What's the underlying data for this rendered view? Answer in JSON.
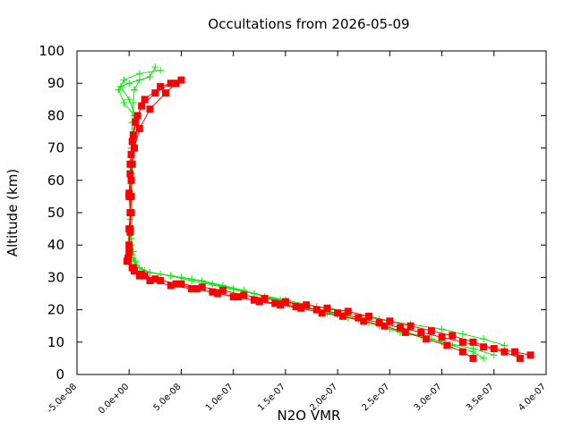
{
  "chart_data": {
    "type": "line",
    "title": "Occultations from 2026-05-09",
    "xlabel": "N2O VMR",
    "ylabel": "Altitude (km)",
    "xlim": [
      -5e-08,
      4e-07
    ],
    "ylim": [
      0,
      100
    ],
    "x_ticks": [
      -5e-08,
      0,
      5e-08,
      1e-07,
      1.5e-07,
      2e-07,
      2.5e-07,
      3e-07,
      3.5e-07,
      4e-07
    ],
    "x_tick_labels": [
      "-5.0e-08",
      "0.0e+00",
      "5.0e-08",
      "1.0e-07",
      "1.5e-07",
      "2.0e-07",
      "2.5e-07",
      "3.0e-07",
      "3.5e-07",
      "4.0e-07"
    ],
    "y_ticks": [
      0,
      10,
      20,
      30,
      40,
      50,
      60,
      70,
      80,
      90,
      100
    ],
    "y_tick_labels": [
      "0",
      "10",
      "20",
      "30",
      "40",
      "50",
      "60",
      "70",
      "80",
      "90",
      "100"
    ],
    "grid": false,
    "legend": "none",
    "series": [
      {
        "color": "#00ee00",
        "marker": "plus",
        "profiles": [
          {
            "x": [
              3.4e-07,
              3.3e-07,
              3.1e-07,
              2.9e-07,
              2.6e-07,
              2.4e-07,
              2.2e-07,
              2e-07,
              1.8e-07,
              1.55e-07,
              1.3e-07,
              1.1e-07,
              9e-08,
              7e-08,
              5e-08,
              3e-08,
              1.5e-08,
              8e-09,
              5e-09,
              3e-09,
              2e-09,
              1.5e-09,
              1.5e-09,
              2e-09,
              2e-09,
              3e-09,
              3e-09,
              4e-09,
              5e-09,
              -5e-09,
              -1e-08,
              -5e-09,
              1e-08,
              3e-08
            ],
            "y": [
              5,
              7,
              9,
              11,
              13,
              15,
              17,
              18.5,
              20,
              22,
              24,
              26,
              27.5,
              29,
              30,
              31,
              32,
              33,
              35,
              37,
              40,
              45,
              50,
              55,
              60,
              65,
              70,
              75,
              80,
              84,
              88,
              91,
              93,
              94
            ]
          },
          {
            "x": [
              3.5e-07,
              3.3e-07,
              3e-07,
              2.8e-07,
              2.5e-07,
              2.3e-07,
              2.1e-07,
              1.9e-07,
              1.7e-07,
              1.45e-07,
              1.2e-07,
              1e-07,
              8e-08,
              6e-08,
              4e-08,
              2e-08,
              1e-08,
              6e-09,
              4e-09,
              2e-09,
              1e-09,
              1e-09,
              2e-09,
              2e-09,
              3e-09,
              4e-09,
              5e-09,
              1e-08,
              2e-08
            ],
            "y": [
              6,
              8,
              10,
              12,
              14,
              16,
              17.5,
              19,
              21,
              23,
              25,
              26.5,
              28,
              29.5,
              30.5,
              31.5,
              33,
              35,
              38,
              42,
              48,
              55,
              62,
              70,
              78,
              84,
              88,
              91,
              92
            ]
          },
          {
            "x": [
              3.6e-07,
              3.4e-07,
              3.2e-07,
              3e-07,
              2.7e-07,
              2.4e-07,
              2.1e-07,
              1.8e-07,
              1.5e-07,
              1.2e-07,
              9e-08,
              6e-08,
              4e-08,
              2e-08,
              8e-09,
              3e-09,
              2e-09,
              3e-09,
              3e-09,
              4e-09,
              6e-09,
              0.0,
              -8e-09,
              0.0,
              2e-08,
              2.5e-08
            ],
            "y": [
              9,
              11,
              12.5,
              14,
              15.5,
              17,
              19,
              21,
              23,
              25,
              27,
              29,
              30.5,
              31.5,
              33,
              36,
              40,
              50,
              60,
              70,
              80,
              85,
              89,
              90,
              92,
              95
            ]
          }
        ]
      },
      {
        "color": "#ff0000",
        "marker": "filled-square",
        "profiles": [
          {
            "x": [
              3.85e-07,
              3.7e-07,
              3.5e-07,
              3.3e-07,
              3.1e-07,
              2.9e-07,
              2.7e-07,
              2.5e-07,
              2.3e-07,
              2.1e-07,
              1.9e-07,
              1.7e-07,
              1.5e-07,
              1.3e-07,
              1.1e-07,
              9e-08,
              7e-08,
              5e-08,
              3e-08,
              1.5e-08,
              5e-09,
              -2e-09,
              0.0,
              1e-09,
              2e-09,
              0.0,
              2e-09,
              3e-09,
              5e-09,
              1e-08,
              2e-08,
              3.5e-08,
              4.5e-08
            ],
            "y": [
              6,
              7,
              8,
              10,
              12,
              13.5,
              15,
              16.5,
              18,
              19.5,
              20.5,
              21.5,
              22.5,
              23.5,
              24.5,
              26,
              27,
              28,
              29,
              30.5,
              32,
              35,
              40,
              45,
              50,
              55,
              60,
              65,
              70,
              76,
              82,
              87,
              90
            ]
          },
          {
            "x": [
              3.75e-07,
              3.6e-07,
              3.4e-07,
              3.2e-07,
              3e-07,
              2.8e-07,
              2.6e-07,
              2.4e-07,
              2.2e-07,
              2e-07,
              1.8e-07,
              1.6e-07,
              1.4e-07,
              1.2e-07,
              1e-07,
              8e-08,
              6e-08,
              4e-08,
              2e-08,
              1e-08,
              3e-09,
              0.0,
              1e-09,
              1e-09,
              0.0,
              1e-09,
              2e-09,
              4e-09,
              8e-09,
              1.5e-08,
              3e-08,
              5e-08
            ],
            "y": [
              5,
              7,
              8.5,
              10,
              11.5,
              13,
              14.5,
              16,
              17.5,
              19,
              20,
              21,
              22,
              23,
              24,
              25.5,
              26.5,
              27.5,
              29,
              30.5,
              33,
              38,
              44,
              50,
              56,
              62,
              68,
              74,
              80,
              85,
              89,
              91
            ]
          },
          {
            "x": [
              3.3e-07,
              3.2e-07,
              3.05e-07,
              2.85e-07,
              2.65e-07,
              2.45e-07,
              2.25e-07,
              2.05e-07,
              1.85e-07,
              1.65e-07,
              1.45e-07,
              1.25e-07,
              1.05e-07,
              8.5e-08,
              6.5e-08,
              4.5e-08,
              2.5e-08,
              1.2e-08,
              4e-09,
              -1e-09,
              0.0,
              2e-09,
              1e-09,
              3e-09,
              6e-09,
              1.2e-08,
              2.5e-08,
              4e-08
            ],
            "y": [
              5,
              7,
              9,
              11,
              13,
              15,
              16.5,
              18,
              19,
              20.5,
              21.5,
              22.5,
              24,
              25,
              26.5,
              28,
              29.5,
              31,
              33,
              36,
              45,
              55,
              65,
              72,
              78,
              83,
              87,
              90
            ]
          }
        ]
      }
    ]
  }
}
